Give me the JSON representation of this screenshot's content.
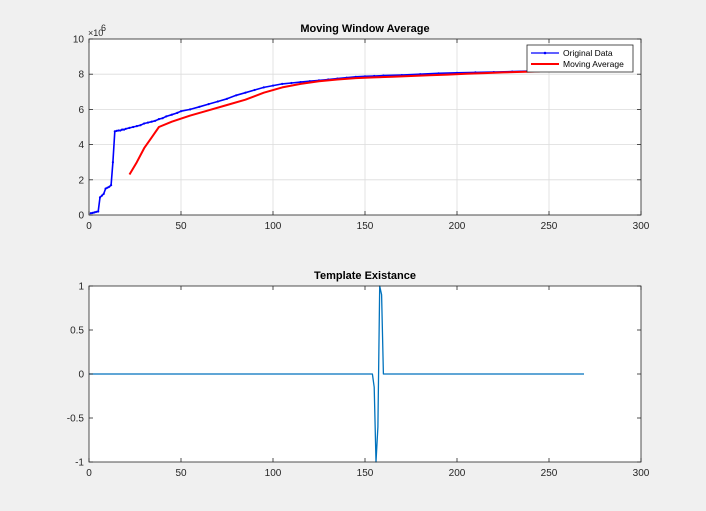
{
  "colors": {
    "figure_bg": "#f0f0f0",
    "axes_bg": "#ffffff",
    "grid": "#dcdcdc",
    "original": "#0000ff",
    "moving": "#ff0000",
    "template": "#0072bd"
  },
  "chart_data": [
    {
      "type": "line",
      "title": "Moving Window Average",
      "xlabel": "",
      "ylabel": "",
      "xlim": [
        0,
        300
      ],
      "ylim": [
        0,
        10
      ],
      "y_multiplier_label": "×10",
      "y_multiplier_exponent": "6",
      "x_ticks": [
        "0",
        "50",
        "100",
        "150",
        "200",
        "250",
        "300"
      ],
      "y_ticks": [
        "0",
        "2",
        "4",
        "6",
        "8",
        "10"
      ],
      "grid": true,
      "legend_position": "top-right",
      "series": [
        {
          "name": "Original Data",
          "color": "#0000ff",
          "marker": "dot",
          "x": [
            1,
            2,
            3,
            4,
            5,
            6,
            7,
            8,
            9,
            10,
            11,
            12,
            13,
            14,
            15,
            16,
            17,
            18,
            19,
            20,
            22,
            24,
            26,
            28,
            30,
            32,
            34,
            36,
            38,
            40,
            42,
            45,
            48,
            50,
            55,
            60,
            65,
            70,
            75,
            80,
            85,
            90,
            95,
            100,
            105,
            110,
            115,
            120,
            125,
            130,
            135,
            140,
            145,
            150,
            155,
            160,
            170,
            180,
            190,
            200,
            210,
            220,
            230,
            240,
            245
          ],
          "y": [
            0.1,
            0.12,
            0.15,
            0.18,
            0.2,
            1.0,
            1.1,
            1.2,
            1.5,
            1.55,
            1.6,
            1.7,
            3.0,
            4.75,
            4.78,
            4.8,
            4.8,
            4.85,
            4.85,
            4.9,
            4.95,
            5.0,
            5.05,
            5.1,
            5.2,
            5.25,
            5.3,
            5.35,
            5.45,
            5.5,
            5.6,
            5.7,
            5.8,
            5.9,
            6.0,
            6.15,
            6.3,
            6.45,
            6.6,
            6.8,
            6.95,
            7.1,
            7.25,
            7.35,
            7.45,
            7.5,
            7.55,
            7.6,
            7.65,
            7.7,
            7.75,
            7.8,
            7.85,
            7.88,
            7.9,
            7.92,
            7.95,
            8.0,
            8.05,
            8.08,
            8.1,
            8.12,
            8.15,
            8.18,
            8.2
          ]
        },
        {
          "name": "Moving Average",
          "color": "#ff0000",
          "x": [
            22,
            26,
            30,
            34,
            38,
            45,
            55,
            65,
            75,
            85,
            95,
            105,
            115,
            125,
            135,
            145,
            155,
            165,
            175,
            185,
            195,
            205,
            215,
            225,
            235,
            245
          ],
          "y": [
            2.3,
            3.0,
            3.8,
            4.4,
            5.0,
            5.3,
            5.65,
            5.95,
            6.25,
            6.55,
            6.95,
            7.25,
            7.45,
            7.6,
            7.7,
            7.78,
            7.82,
            7.86,
            7.9,
            7.94,
            7.98,
            8.02,
            8.06,
            8.1,
            8.13,
            8.16
          ]
        }
      ]
    },
    {
      "type": "line",
      "title": "Template Existance",
      "xlabel": "",
      "ylabel": "",
      "xlim": [
        0,
        300
      ],
      "ylim": [
        -1,
        1
      ],
      "x_ticks": [
        "0",
        "50",
        "100",
        "150",
        "200",
        "250",
        "300"
      ],
      "y_ticks": [
        "-1",
        "-0.5",
        "0",
        "0.5",
        "1"
      ],
      "grid": false,
      "series": [
        {
          "color": "#0072bd",
          "x": [
            0,
            154,
            155,
            156,
            157,
            158,
            159,
            160,
            161,
            269
          ],
          "y": [
            0,
            0,
            -0.15,
            -1,
            -0.6,
            1,
            0.9,
            0,
            0,
            0
          ]
        }
      ]
    }
  ]
}
